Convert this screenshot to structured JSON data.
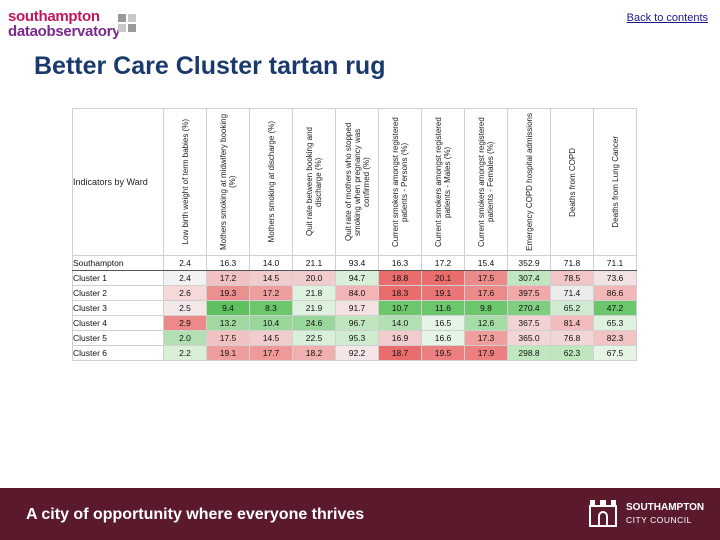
{
  "header": {
    "logo_line1": "southampton",
    "logo_line2": "dataobservatory",
    "back_link": "Back to contents",
    "title": "Better Care Cluster tartan rug"
  },
  "table": {
    "corner_label": "Indicators by Ward",
    "columns": [
      "Low birth weight of term babies (%)",
      "Mothers smoking at midwifery booking (%)",
      "Mothers smoking at discharge (%)",
      "Quit rate between booking and discharge (%)",
      "Quit rate of mothers who stopped smoking when pregnancy was confirmed (%)",
      "Current smokers amongst registered patients - Persons (%)",
      "Current smokers amongst registered patients - Males (%)",
      "Current smokers amongst registered patients - Females (%)",
      "Emergency COPD hospital admissions",
      "Deaths from COPD",
      "Deaths from Lung Cancer"
    ],
    "rows": [
      {
        "label": "Southampton",
        "values": [
          "2.4",
          "16.3",
          "14.0",
          "21.1",
          "93.4",
          "16.3",
          "17.2",
          "15.4",
          "352.9",
          "71.8",
          "71.1"
        ],
        "colors": [
          "#ffffff",
          "#ffffff",
          "#ffffff",
          "#ffffff",
          "#ffffff",
          "#ffffff",
          "#ffffff",
          "#ffffff",
          "#ffffff",
          "#ffffff",
          "#ffffff"
        ]
      },
      {
        "label": "Cluster 1",
        "values": [
          "2.4",
          "17.2",
          "14.5",
          "20.0",
          "94.7",
          "18.8",
          "20.1",
          "17.5",
          "307.4",
          "78.5",
          "73.6"
        ],
        "colors": [
          "#f2f2f2",
          "#f2c2c2",
          "#f0cccc",
          "#f0cccc",
          "#d8efd8",
          "#e96d6d",
          "#e96d6d",
          "#ec8a8a",
          "#bfe6bf",
          "#f2c6c6",
          "#f2e2e2"
        ]
      },
      {
        "label": "Cluster 2",
        "values": [
          "2.6",
          "19.3",
          "17.2",
          "21.8",
          "84.0",
          "18.3",
          "19.1",
          "17.6",
          "397.5",
          "71.4",
          "86.6"
        ],
        "colors": [
          "#f6d8d8",
          "#ec8f8f",
          "#ef9e9e",
          "#dff2df",
          "#f2b4b4",
          "#e96d6d",
          "#e97676",
          "#ec8a8a",
          "#f0a8a8",
          "#ececec",
          "#f2b8b8"
        ]
      },
      {
        "label": "Cluster 3",
        "values": [
          "2.5",
          "9.4",
          "8.3",
          "21.9",
          "91.7",
          "10.7",
          "11.6",
          "9.8",
          "270.4",
          "65.2",
          "47.2"
        ],
        "colors": [
          "#f2e8e8",
          "#5fc05f",
          "#6cc76c",
          "#dff2df",
          "#f4e2e2",
          "#6cc76c",
          "#6cc76c",
          "#6cc76c",
          "#80cf80",
          "#cfead0",
          "#6cc76c"
        ]
      },
      {
        "label": "Cluster 4",
        "values": [
          "2.9",
          "13.2",
          "10.4",
          "24.6",
          "96.7",
          "14.0",
          "16.5",
          "12.6",
          "367.5",
          "81.4",
          "65.3"
        ],
        "colors": [
          "#ec8a8a",
          "#9fd99f",
          "#99d699",
          "#99d699",
          "#bfe6bf",
          "#b3e0b3",
          "#e6f4e6",
          "#a6dca6",
          "#f2d2d2",
          "#f2bcbc",
          "#dff0df"
        ]
      },
      {
        "label": "Cluster 5",
        "values": [
          "2.0",
          "17.5",
          "14.5",
          "22.5",
          "95.3",
          "16.9",
          "16.6",
          "17.3",
          "365.0",
          "76.8",
          "82.3"
        ],
        "colors": [
          "#b3e0b3",
          "#f2c2c2",
          "#f0cccc",
          "#d8efd8",
          "#d0ecd0",
          "#f2cccc",
          "#e6f4e6",
          "#ef9e9e",
          "#f2d6d6",
          "#f2d6d6",
          "#f2c4c4"
        ]
      },
      {
        "label": "Cluster 6",
        "values": [
          "2.2",
          "19.1",
          "17.7",
          "18.2",
          "92.2",
          "18.7",
          "19.5",
          "17.9",
          "298.8",
          "62.3",
          "67.5"
        ],
        "colors": [
          "#d8efd8",
          "#ef9e9e",
          "#ef9999",
          "#f0b0b0",
          "#f4e6e6",
          "#e96d6d",
          "#ec8080",
          "#ec8080",
          "#bfe6bf",
          "#bfe6bf",
          "#e6f4e6"
        ]
      }
    ]
  },
  "footer": {
    "tagline": "A city of opportunity where everyone thrives",
    "logo_line1": "SOUTHAMPTON",
    "logo_line2": "CITY COUNCIL"
  }
}
